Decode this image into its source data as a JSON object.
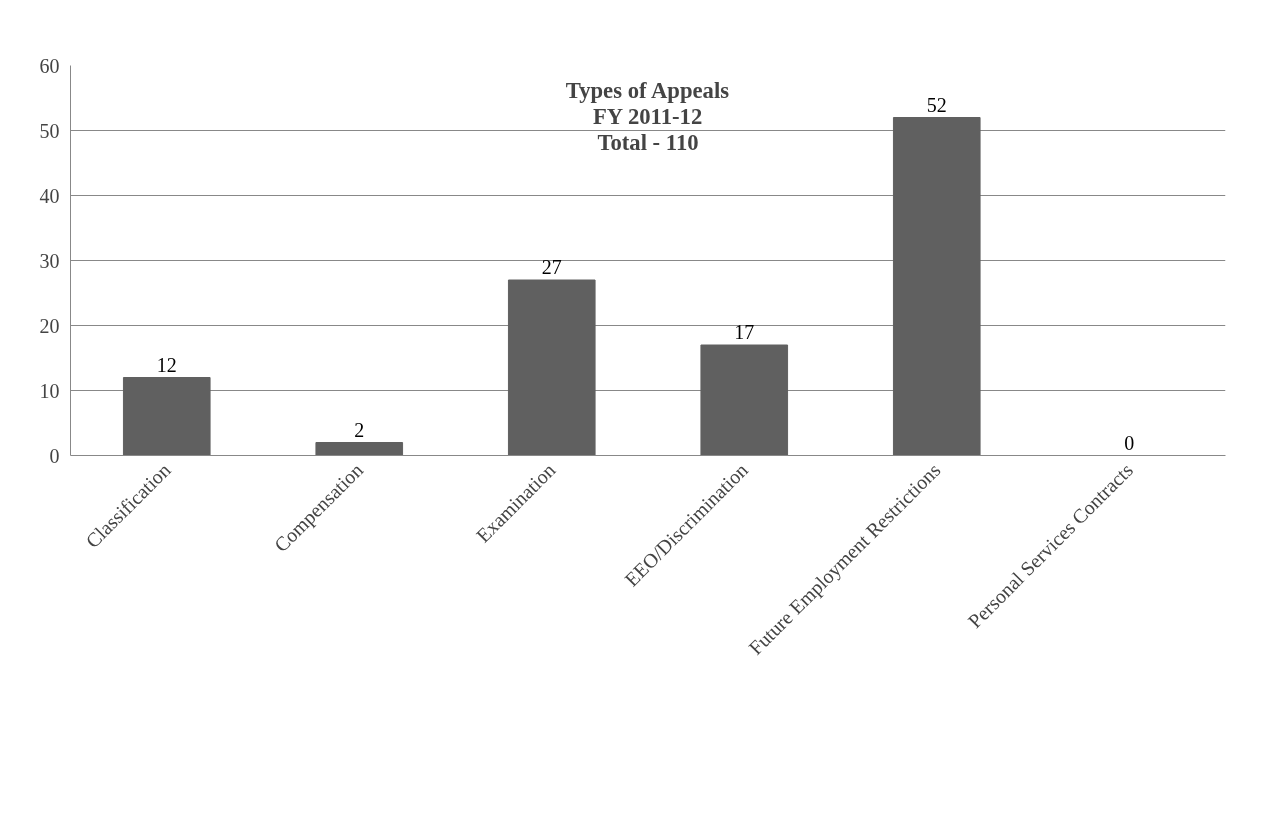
{
  "chart_data": {
    "type": "bar",
    "title": "Types of Appeals\nFY 2011-12\nTotal - 110",
    "categories": [
      "Classification",
      "Compensation",
      "Examination",
      "EEO/Discrimination",
      "Future Employment Restrictions",
      "Personal Services Contracts"
    ],
    "values": [
      12,
      2,
      27,
      17,
      52,
      0
    ],
    "color": "#606060",
    "ylim": [
      0,
      60
    ],
    "yticks": [
      0,
      10,
      20,
      30,
      40,
      50,
      60
    ],
    "grid": "y",
    "data_labels": true
  }
}
